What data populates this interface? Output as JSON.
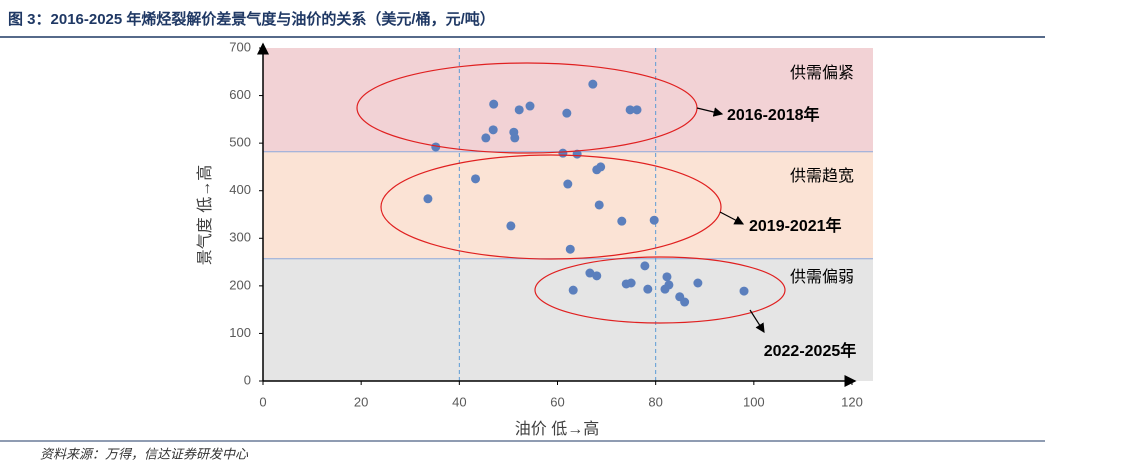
{
  "chart_data": {
    "type": "scatter",
    "title": "图 3：2016-2025 年烯烃裂解价差景气度与油价的关系（美元/桶，元/吨）",
    "x_label": "油价 低→高",
    "y_label": "景气度 低→高",
    "source": "资料来源：万得，信达证券研发中心",
    "xlim": [
      0,
      120
    ],
    "xticks": [
      0,
      20,
      40,
      60,
      80,
      100,
      120
    ],
    "ylim": [
      0,
      700
    ],
    "yticks": [
      0,
      100,
      200,
      300,
      400,
      500,
      600,
      700
    ],
    "vlines": [
      40,
      80
    ],
    "bands": [
      {
        "from": 482,
        "to": 700,
        "label": "供需偏紧",
        "color": "#f2d2d5"
      },
      {
        "from": 257,
        "to": 482,
        "label": "供需趋宽",
        "color": "#fbe3d5"
      },
      {
        "from": 0,
        "to": 257,
        "label": "供需偏弱",
        "color": "#e5e5e5"
      }
    ],
    "annotations": [
      "2016-2018年",
      "2019-2021年",
      "2022-2025年"
    ],
    "series": [
      {
        "color": "#5b7fbd",
        "x": [
          35.2,
          47,
          54.4,
          52.2,
          46.9,
          45.4,
          51.1,
          51.3,
          61.9,
          67.2,
          74.8,
          76.2,
          61.1,
          64,
          43.3,
          33.6,
          62.1,
          68,
          68.8,
          68.5,
          73.1,
          79.7,
          50.5,
          62.6,
          66.6,
          68,
          77.8,
          63.2,
          74,
          75,
          78.4,
          82.3,
          82.7,
          81.9,
          88.6,
          84.9,
          85.9,
          98
        ],
        "values": [
          492,
          582,
          578,
          570,
          528,
          511,
          523,
          511,
          563,
          624,
          570,
          570,
          479,
          477,
          425,
          383,
          414,
          444,
          450,
          370,
          336,
          338,
          326,
          277,
          227,
          221,
          242,
          191,
          204,
          206,
          193,
          219,
          202,
          193,
          206,
          177,
          166,
          189
        ]
      }
    ]
  }
}
